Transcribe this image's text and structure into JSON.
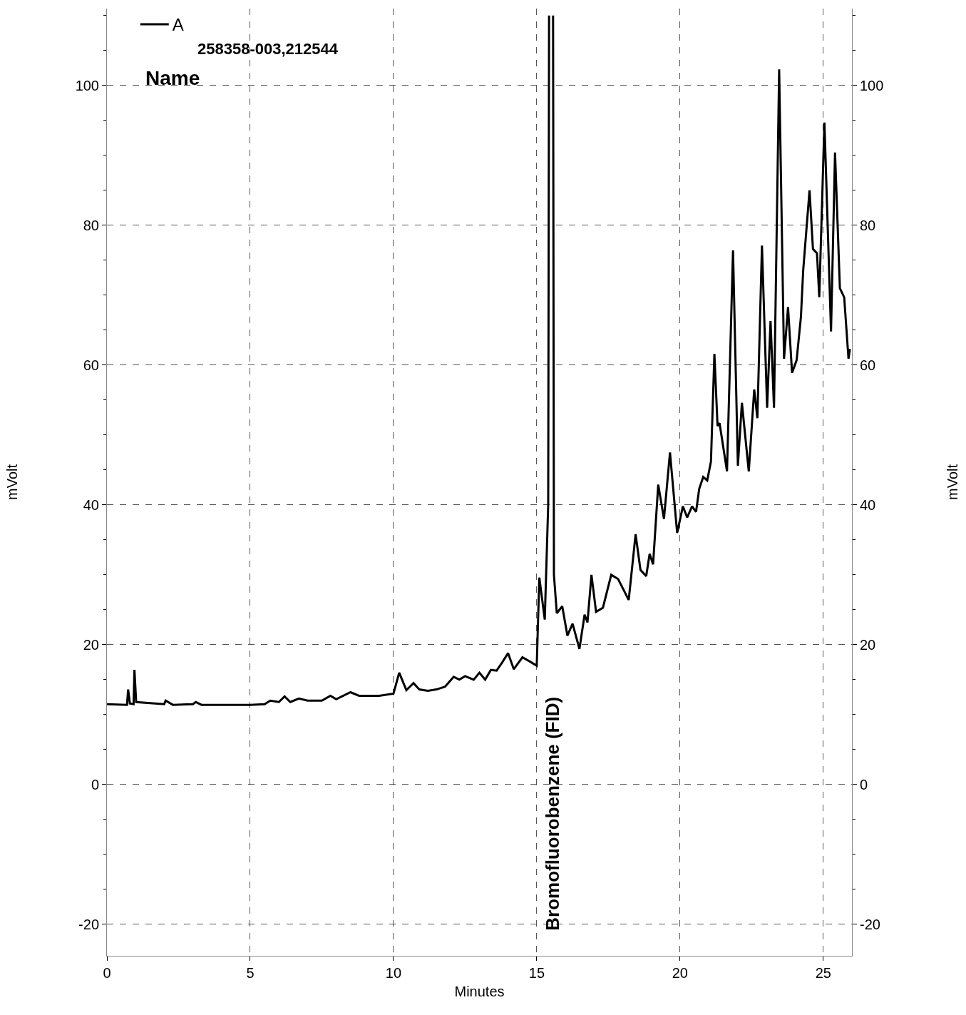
{
  "chart_data": {
    "type": "line",
    "xlabel": "Minutes",
    "ylabel": "mVolt",
    "y2label": "mVolt",
    "xlim": [
      0,
      26
    ],
    "xticks": [
      0,
      5,
      10,
      15,
      20,
      25
    ],
    "ylim": [
      -24.5,
      111
    ],
    "yticks": [
      -20,
      0,
      20,
      40,
      60,
      80,
      100
    ],
    "y2lim": [
      -24.5,
      111
    ],
    "y2ticks": [
      -20,
      0,
      20,
      40,
      60,
      80,
      100
    ],
    "grid": true,
    "legend": "top left",
    "marker": "none",
    "line_style": "solid",
    "series": [
      {
        "name": "A",
        "color": "#000000",
        "x": [
          0,
          0.7,
          0.74,
          0.8,
          0.93,
          0.96,
          1.02,
          2,
          2.05,
          2.3,
          3,
          3.1,
          3.3,
          5,
          5.5,
          5.7,
          6,
          6.2,
          6.4,
          6.7,
          7,
          7.5,
          7.8,
          8,
          8.5,
          8.8,
          9.5,
          10,
          10.2,
          10.45,
          10.7,
          10.9,
          11.2,
          11.5,
          11.8,
          12.1,
          12.3,
          12.5,
          12.8,
          13,
          13.2,
          13.4,
          13.6,
          13.8,
          14,
          14.2,
          14.5,
          14.8,
          15,
          15.09,
          15.28,
          15.4,
          15.43,
          15.45,
          15.55,
          15.57,
          15.6,
          15.7,
          15.89,
          16.07,
          16.25,
          16.49,
          16.67,
          16.77,
          16.91,
          17.07,
          17.31,
          17.6,
          17.84,
          18.21,
          18.45,
          18.62,
          18.82,
          18.94,
          19.06,
          19.24,
          19.44,
          19.65,
          19.9,
          20.1,
          20.25,
          20.42,
          20.56,
          20.67,
          20.81,
          20.95,
          21.08,
          21.2,
          21.31,
          21.38,
          21.64,
          21.85,
          22.02,
          22.16,
          22.4,
          22.59,
          22.7,
          22.86,
          23.04,
          23.16,
          23.28,
          23.46,
          23.63,
          23.77,
          23.91,
          24.07,
          24.22,
          24.3,
          24.52,
          24.64,
          24.78,
          24.86,
          25.04,
          25.27,
          25.41,
          25.58,
          25.73,
          25.88,
          25.93
        ],
        "values": [
          11.5,
          11.4,
          13.6,
          11.6,
          11.5,
          16.4,
          11.8,
          11.5,
          12,
          11.4,
          11.5,
          11.8,
          11.4,
          11.4,
          11.5,
          12,
          11.8,
          12.6,
          11.8,
          12.3,
          12,
          12,
          12.7,
          12.2,
          13.2,
          12.7,
          12.7,
          13,
          16,
          13.5,
          14.5,
          13.6,
          13.4,
          13.6,
          14,
          15.4,
          15,
          15.5,
          15,
          16,
          15,
          16.4,
          16.3,
          17.5,
          18.8,
          16.5,
          18.2,
          17.5,
          17,
          29.6,
          23.6,
          40,
          110,
          null,
          null,
          110,
          30,
          24.5,
          25.5,
          21.3,
          23,
          19.4,
          24.3,
          23.2,
          30,
          24.7,
          25.3,
          30,
          29.4,
          26.4,
          35.8,
          30.7,
          29.8,
          33,
          31.5,
          42.9,
          38,
          47.5,
          36,
          39.8,
          38.2,
          39.8,
          39,
          42.3,
          44,
          43.5,
          46.2,
          61.6,
          51.3,
          51.7,
          44.8,
          76.4,
          45.6,
          54.6,
          44.8,
          56.5,
          52.4,
          77.1,
          53.9,
          66.3,
          53.9,
          102.3,
          60.9,
          68.3,
          58.9,
          60.7,
          66.9,
          73.6,
          85,
          76.6,
          76,
          69.7,
          94.7,
          64.8,
          90.4,
          71,
          69.7,
          60.9,
          62.3
        ]
      }
    ],
    "annotations": [
      "258358-003,212544",
      "Name",
      "Bromofluorobenzene (FID)"
    ]
  }
}
